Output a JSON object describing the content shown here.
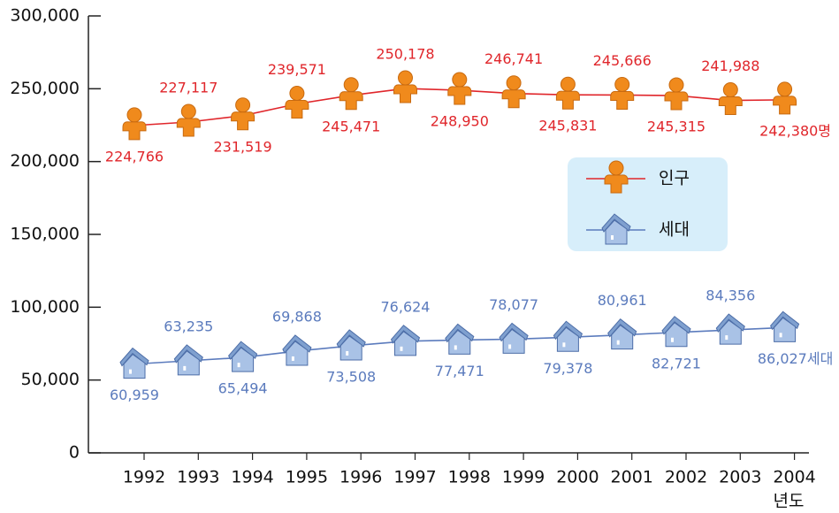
{
  "chart_data": {
    "type": "line",
    "x_label": "년도",
    "categories": [
      "1992",
      "1993",
      "1994",
      "1995",
      "1996",
      "1997",
      "1998",
      "1999",
      "2000",
      "2001",
      "2002",
      "2003",
      "2004"
    ],
    "series": [
      {
        "name": "인구",
        "color": "#e0262b",
        "marker": "person",
        "values": [
          224766,
          227117,
          231519,
          239571,
          245471,
          250178,
          248950,
          246741,
          245831,
          245666,
          245315,
          241988,
          242380
        ],
        "value_labels": [
          "224,766",
          "227,117",
          "231,519",
          "239,571",
          "245,471",
          "250,178",
          "248,950",
          "246,741",
          "245,831",
          "245,666",
          "245,315",
          "241,988",
          "242,380명"
        ]
      },
      {
        "name": "세대",
        "color": "#5b7bbd",
        "marker": "house",
        "values": [
          60959,
          63235,
          65494,
          69868,
          73508,
          76624,
          77471,
          78077,
          79378,
          80961,
          82721,
          84356,
          86027
        ],
        "value_labels": [
          "60,959",
          "63,235",
          "65,494",
          "69,868",
          "73,508",
          "76,624",
          "77,471",
          "78,077",
          "79,378",
          "80,961",
          "82,721",
          "84,356",
          "86,027세대"
        ]
      }
    ],
    "ylim": [
      0,
      300000
    ],
    "yticks": [
      0,
      {
        "value": 50000,
        "label": "50,000"
      },
      {
        "value": 100000,
        "label": "100,000"
      },
      {
        "value": 150000,
        "label": "150,000"
      },
      {
        "value": 200000,
        "label": "200,000"
      },
      {
        "value": 250000,
        "label": "250,000"
      },
      {
        "value": 300000,
        "label": "300,000"
      }
    ],
    "grid": false,
    "legend": "right"
  }
}
